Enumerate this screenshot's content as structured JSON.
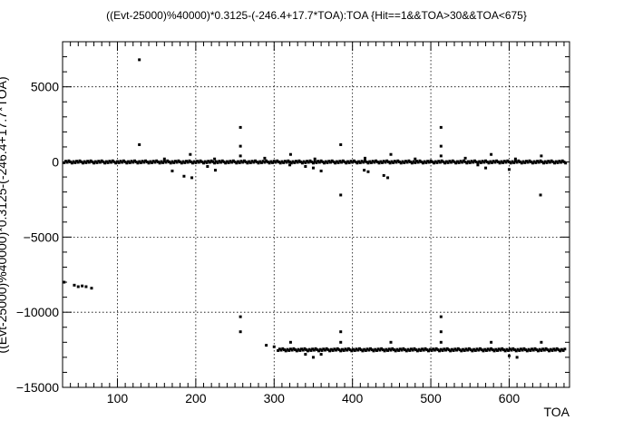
{
  "chart_data": {
    "type": "scatter",
    "title": "((Evt-25000)%40000)*0.3125-(-246.4+17.7*TOA):TOA {Hit==1&&TOA>30&&TOA<675}",
    "xlabel": "TOA",
    "ylabel": "((Evt-25000)%40000)*0.3125-(-246.4+17.7*TOA)",
    "xlim": [
      30,
      677
    ],
    "ylim": [
      -15000,
      8000
    ],
    "xticks": [
      100,
      200,
      300,
      400,
      500,
      600
    ],
    "yticks": [
      -15000,
      -10000,
      -5000,
      0,
      5000
    ],
    "xtick_labels": [
      "100",
      "200",
      "300",
      "400",
      "500",
      "600"
    ],
    "ytick_labels": [
      "−15000",
      "−10000",
      "−5000",
      "0",
      "5000"
    ],
    "grid": true,
    "marker_color": "#000000",
    "series": [
      {
        "points": [
          [
            32,
            -8000
          ],
          [
            45,
            -8200
          ],
          [
            50,
            -8300
          ],
          [
            55,
            -8250
          ],
          [
            60,
            -8300
          ],
          [
            67,
            -8400
          ],
          [
            128,
            6800
          ],
          [
            128,
            1150
          ],
          [
            257,
            2300
          ],
          [
            257,
            1050
          ],
          [
            257,
            400
          ],
          [
            385,
            1150
          ],
          [
            513,
            2300
          ],
          [
            513,
            1050
          ],
          [
            513,
            400
          ],
          [
            449,
            500
          ],
          [
            577,
            500
          ],
          [
            193,
            500
          ],
          [
            321,
            500
          ],
          [
            641,
            400
          ],
          [
            160,
            200
          ],
          [
            224,
            200
          ],
          [
            288,
            250
          ],
          [
            352,
            200
          ],
          [
            416,
            250
          ],
          [
            480,
            200
          ],
          [
            544,
            250
          ],
          [
            608,
            200
          ],
          [
            170,
            -600
          ],
          [
            185,
            -950
          ],
          [
            195,
            -1050
          ],
          [
            215,
            -300
          ],
          [
            225,
            -550
          ],
          [
            320,
            -200
          ],
          [
            340,
            -300
          ],
          [
            350,
            -400
          ],
          [
            360,
            -600
          ],
          [
            385,
            -2200
          ],
          [
            415,
            -550
          ],
          [
            420,
            -650
          ],
          [
            440,
            -900
          ],
          [
            445,
            -1050
          ],
          [
            560,
            -200
          ],
          [
            570,
            -400
          ],
          [
            600,
            -500
          ],
          [
            640,
            -2200
          ],
          [
            257,
            -10300
          ],
          [
            257,
            -11300
          ],
          [
            513,
            -10300
          ],
          [
            513,
            -11300
          ],
          [
            385,
            -11300
          ],
          [
            290,
            -12200
          ],
          [
            300,
            -12300
          ],
          [
            340,
            -12800
          ],
          [
            350,
            -13000
          ],
          [
            360,
            -12800
          ],
          [
            600,
            -12900
          ],
          [
            610,
            -13000
          ],
          [
            321,
            -12000
          ],
          [
            385,
            -12000
          ],
          [
            449,
            -12000
          ],
          [
            513,
            -12000
          ],
          [
            577,
            -12000
          ],
          [
            641,
            -12000
          ]
        ],
        "bands": [
          {
            "y": 0,
            "x_from": 32,
            "x_to": 672
          },
          {
            "y": -12500,
            "x_from": 305,
            "x_to": 672
          }
        ]
      }
    ]
  }
}
